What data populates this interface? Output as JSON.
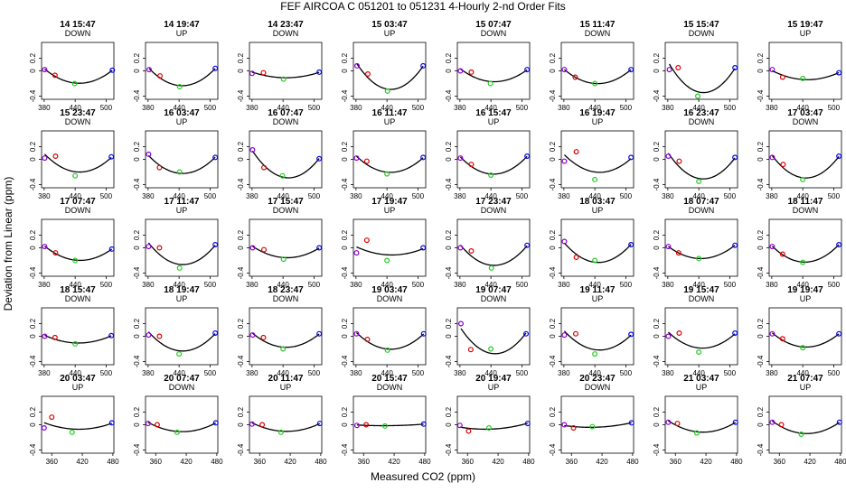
{
  "title": "FEF   AIRCOA C   051201 to 051231   4-Hourly 2-nd Order Fits",
  "xlabel": "Measured CO2 (ppm)",
  "ylabel": "Deviation from Linear (ppm)",
  "colors": {
    "curve": "#000000",
    "p1": "#8800cc",
    "p2": "#dd0000",
    "p3": "#22cc22",
    "p4": "#0000ee"
  },
  "chart_data": {
    "type": "scatter",
    "title": "FEF   AIRCOA C   051201 to 051231   4-Hourly 2-nd Order Fits",
    "xlabel": "Measured CO2 (ppm)",
    "ylabel": "Deviation from Linear (ppm)",
    "grid": false,
    "layout": {
      "rows": 5,
      "cols": 8
    },
    "rows": [
      {
        "xlim": [
          375,
          515
        ],
        "xticks": [
          380,
          440,
          500
        ],
        "ylim": [
          -0.45,
          0.45
        ],
        "yticks": [
          -0.4,
          0,
          0.2
        ]
      },
      {
        "xlim": [
          375,
          515
        ],
        "xticks": [
          380,
          440,
          500
        ],
        "ylim": [
          -0.45,
          0.45
        ],
        "yticks": [
          -0.4,
          0,
          0.2
        ]
      },
      {
        "xlim": [
          375,
          515
        ],
        "xticks": [
          380,
          440,
          500
        ],
        "ylim": [
          -0.45,
          0.45
        ],
        "yticks": [
          -0.4,
          0,
          0.2
        ]
      },
      {
        "xlim": [
          375,
          515
        ],
        "xticks": [
          380,
          440,
          500
        ],
        "ylim": [
          -0.45,
          0.45
        ],
        "yticks": [
          -0.4,
          0,
          0.2
        ]
      },
      {
        "xlim": [
          340,
          482
        ],
        "xticks": [
          360,
          420,
          480
        ],
        "ylim": [
          -0.45,
          0.45
        ],
        "yticks": [
          -0.4,
          0,
          0.2
        ]
      }
    ],
    "panels": [
      {
        "title": "14 15:47",
        "direction": "DOWN",
        "x": [
          381,
          401,
          439,
          512
        ],
        "y": [
          0.02,
          -0.07,
          -0.2,
          0.01
        ]
      },
      {
        "title": "14 19:47",
        "direction": "UP",
        "x": [
          382,
          403,
          441,
          510
        ],
        "y": [
          0.02,
          -0.08,
          -0.25,
          0.04
        ]
      },
      {
        "title": "14 23:47",
        "direction": "DOWN",
        "x": [
          380,
          402,
          441,
          510
        ],
        "y": [
          -0.04,
          -0.03,
          -0.13,
          -0.02
        ]
      },
      {
        "title": "15 03:47",
        "direction": "UP",
        "x": [
          382,
          403,
          441,
          510
        ],
        "y": [
          0.08,
          -0.05,
          -0.32,
          0.08
        ]
      },
      {
        "title": "15 07:47",
        "direction": "DOWN",
        "x": [
          381,
          402,
          439,
          510
        ],
        "y": [
          0,
          -0.02,
          -0.2,
          0.02
        ]
      },
      {
        "title": "15 11:47",
        "direction": "DOWN",
        "x": [
          381,
          402,
          440,
          510
        ],
        "y": [
          0.02,
          -0.1,
          -0.2,
          0.02
        ]
      },
      {
        "title": "15 15:47",
        "direction": "DOWN",
        "x": [
          383,
          400,
          438,
          510
        ],
        "y": [
          0.02,
          0.05,
          -0.4,
          0.05
        ]
      },
      {
        "title": "15 19:47",
        "direction": "UP",
        "x": [
          381,
          401,
          440,
          510
        ],
        "y": [
          0.02,
          -0.1,
          -0.12,
          -0.03
        ]
      },
      {
        "title": "15 23:47",
        "direction": "DOWN",
        "x": [
          381,
          402,
          440,
          510
        ],
        "y": [
          0.02,
          0.05,
          -0.26,
          0.04
        ]
      },
      {
        "title": "16 03:47",
        "direction": "UP",
        "x": [
          381,
          402,
          441,
          510
        ],
        "y": [
          0.08,
          -0.13,
          -0.2,
          0.03
        ]
      },
      {
        "title": "16 07:47",
        "direction": "DOWN",
        "x": [
          381,
          403,
          439,
          510
        ],
        "y": [
          0.15,
          -0.13,
          -0.26,
          0.01
        ]
      },
      {
        "title": "16 11:47",
        "direction": "UP",
        "x": [
          381,
          401,
          440,
          510
        ],
        "y": [
          0.02,
          -0.03,
          -0.23,
          0.03
        ]
      },
      {
        "title": "16 15:47",
        "direction": "UP",
        "x": [
          381,
          402,
          440,
          510
        ],
        "y": [
          0.02,
          -0.08,
          -0.25,
          0.05
        ]
      },
      {
        "title": "16 19:47",
        "direction": "UP",
        "x": [
          381,
          404,
          440,
          510
        ],
        "y": [
          -0.03,
          0.12,
          -0.32,
          0.03
        ]
      },
      {
        "title": "16 23:47",
        "direction": "DOWN",
        "x": [
          381,
          402,
          440,
          510
        ],
        "y": [
          0.05,
          -0.03,
          -0.35,
          0.03
        ]
      },
      {
        "title": "17 03:47",
        "direction": "DOWN",
        "x": [
          381,
          402,
          440,
          510
        ],
        "y": [
          0.03,
          -0.08,
          -0.32,
          0.05
        ]
      },
      {
        "title": "17 07:47",
        "direction": "DOWN",
        "x": [
          381,
          402,
          440,
          511
        ],
        "y": [
          0.02,
          -0.08,
          -0.2,
          -0.02
        ]
      },
      {
        "title": "17 11:47",
        "direction": "UP",
        "x": [
          381,
          402,
          441,
          510
        ],
        "y": [
          0.02,
          0,
          -0.32,
          0.05
        ]
      },
      {
        "title": "17 15:47",
        "direction": "DOWN",
        "x": [
          381,
          403,
          441,
          510
        ],
        "y": [
          0,
          -0.03,
          -0.18,
          0
        ]
      },
      {
        "title": "17 19:47",
        "direction": "UP",
        "x": [
          381,
          401,
          440,
          510
        ],
        "y": [
          -0.08,
          0.12,
          -0.2,
          0
        ]
      },
      {
        "title": "17 23:47",
        "direction": "DOWN",
        "x": [
          381,
          402,
          441,
          510
        ],
        "y": [
          0,
          -0.05,
          -0.32,
          0.04
        ]
      },
      {
        "title": "18 03:47",
        "direction": "UP",
        "x": [
          381,
          404,
          440,
          510
        ],
        "y": [
          0.1,
          -0.15,
          -0.2,
          0.05
        ]
      },
      {
        "title": "18 07:47",
        "direction": "DOWN",
        "x": [
          381,
          401,
          440,
          510
        ],
        "y": [
          0.02,
          -0.08,
          -0.17,
          0.04
        ]
      },
      {
        "title": "18 11:47",
        "direction": "DOWN",
        "x": [
          381,
          401,
          440,
          510
        ],
        "y": [
          0.02,
          -0.1,
          -0.23,
          0.05
        ]
      },
      {
        "title": "18 15:47",
        "direction": "DOWN",
        "x": [
          381,
          401,
          440,
          510
        ],
        "y": [
          0,
          -0.02,
          -0.12,
          0.01
        ]
      },
      {
        "title": "18 19:47",
        "direction": "UP",
        "x": [
          381,
          402,
          440,
          510
        ],
        "y": [
          0.02,
          0,
          -0.28,
          0.05
        ]
      },
      {
        "title": "18 23:47",
        "direction": "DOWN",
        "x": [
          381,
          402,
          440,
          510
        ],
        "y": [
          0.02,
          -0.02,
          -0.2,
          0.04
        ]
      },
      {
        "title": "19 03:47",
        "direction": "DOWN",
        "x": [
          381,
          402,
          441,
          511
        ],
        "y": [
          0.04,
          -0.05,
          -0.22,
          0.04
        ]
      },
      {
        "title": "19 07:47",
        "direction": "DOWN",
        "x": [
          382,
          401,
          440,
          508
        ],
        "y": [
          0.2,
          -0.21,
          -0.2,
          0.04
        ]
      },
      {
        "title": "19 11:47",
        "direction": "UP",
        "x": [
          381,
          403,
          440,
          510
        ],
        "y": [
          0.02,
          0.04,
          -0.28,
          0.03
        ]
      },
      {
        "title": "19 15:47",
        "direction": "DOWN",
        "x": [
          381,
          402,
          440,
          510
        ],
        "y": [
          0,
          0.05,
          -0.25,
          0.05
        ]
      },
      {
        "title": "19 19:47",
        "direction": "UP",
        "x": [
          381,
          401,
          440,
          510
        ],
        "y": [
          0.04,
          -0.04,
          -0.18,
          0.04
        ]
      },
      {
        "title": "20 03:47",
        "direction": "UP",
        "x": [
          345,
          360,
          400,
          478
        ],
        "y": [
          -0.05,
          0.12,
          -0.12,
          0.03
        ]
      },
      {
        "title": "20 07:47",
        "direction": "DOWN",
        "x": [
          345,
          363,
          402,
          478
        ],
        "y": [
          0.02,
          0,
          -0.12,
          0.03
        ]
      },
      {
        "title": "20 11:47",
        "direction": "UP",
        "x": [
          345,
          365,
          402,
          478
        ],
        "y": [
          0.01,
          0,
          -0.12,
          0.02
        ]
      },
      {
        "title": "20 15:47",
        "direction": "DOWN",
        "x": [
          347,
          365,
          402,
          478
        ],
        "y": [
          -0.01,
          0,
          -0.02,
          0.01
        ]
      },
      {
        "title": "20 19:47",
        "direction": "UP",
        "x": [
          345,
          362,
          402,
          478
        ],
        "y": [
          -0.01,
          -0.1,
          -0.05,
          0.02
        ]
      },
      {
        "title": "20 23:47",
        "direction": "DOWN",
        "x": [
          346,
          364,
          401,
          478
        ],
        "y": [
          0,
          -0.05,
          -0.03,
          0.03
        ]
      },
      {
        "title": "21 03:47",
        "direction": "UP",
        "x": [
          346,
          364,
          402,
          478
        ],
        "y": [
          0.04,
          0.02,
          -0.13,
          0.04
        ]
      },
      {
        "title": "21 07:47",
        "direction": "UP",
        "x": [
          346,
          364,
          403,
          478
        ],
        "y": [
          0.04,
          0,
          -0.15,
          0.04
        ]
      }
    ]
  }
}
